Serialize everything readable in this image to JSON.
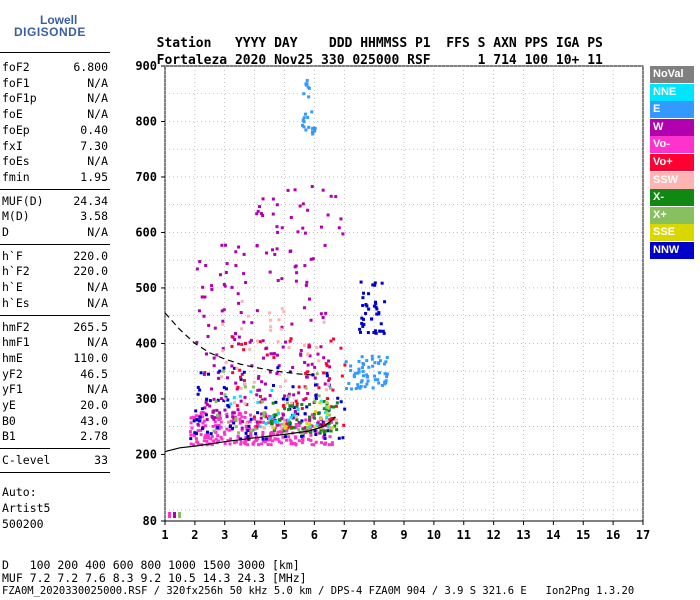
{
  "logo": {
    "top": "Lowell",
    "bottom": "DIGISONDE"
  },
  "header": {
    "labels": [
      "Station",
      "YYYY",
      "DAY",
      "DDD",
      "HHMMSS",
      "P1",
      "FFS",
      "S",
      "AXN",
      "PPS",
      "IGA",
      "PS"
    ],
    "values": [
      "Fortaleza",
      "2020",
      "Nov25",
      "330",
      "025000",
      "RSF",
      "",
      "1",
      "714",
      "100",
      "10+",
      "11"
    ]
  },
  "params_group1": [
    {
      "name": "foF2",
      "value": "6.800"
    },
    {
      "name": "foF1",
      "value": "N/A"
    },
    {
      "name": "foF1p",
      "value": "N/A"
    },
    {
      "name": "foE",
      "value": "N/A"
    },
    {
      "name": "foEp",
      "value": "0.40"
    },
    {
      "name": "fxI",
      "value": "7.30"
    },
    {
      "name": "foEs",
      "value": "N/A"
    },
    {
      "name": "fmin",
      "value": "1.95"
    }
  ],
  "params_group2": [
    {
      "name": "MUF(D)",
      "value": "24.34"
    },
    {
      "name": "M(D)",
      "value": "3.58"
    },
    {
      "name": "D",
      "value": "N/A"
    }
  ],
  "params_group3": [
    {
      "name": "h`F",
      "value": "220.0"
    },
    {
      "name": "h`F2",
      "value": "220.0"
    },
    {
      "name": "h`E",
      "value": "N/A"
    },
    {
      "name": "h`Es",
      "value": "N/A"
    }
  ],
  "params_group4": [
    {
      "name": "hmF2",
      "value": "265.5"
    },
    {
      "name": "hmF1",
      "value": "N/A"
    },
    {
      "name": "hmE",
      "value": "110.0"
    },
    {
      "name": "yF2",
      "value": "46.5"
    },
    {
      "name": "yF1",
      "value": "N/A"
    },
    {
      "name": "yE",
      "value": "20.0"
    },
    {
      "name": "B0",
      "value": "43.0"
    },
    {
      "name": "B1",
      "value": "2.78"
    }
  ],
  "params_group5": [
    {
      "name": "C-level",
      "value": "33"
    }
  ],
  "scaling_notes": [
    "Auto:",
    "Artist5",
    "500200"
  ],
  "legend": [
    {
      "label": "NoVal",
      "color": "#808080"
    },
    {
      "label": "NNE",
      "color": "#00e5ff"
    },
    {
      "label": "E",
      "color": "#3399ff"
    },
    {
      "label": "W",
      "color": "#b000b0"
    },
    {
      "label": "Vo-",
      "color": "#ff33cc"
    },
    {
      "label": "Vo+",
      "color": "#ff0033"
    },
    {
      "label": "SSW",
      "color": "#ffb3b3"
    },
    {
      "label": "X-",
      "color": "#118811"
    },
    {
      "label": "X+",
      "color": "#88c060"
    },
    {
      "label": "SSE",
      "color": "#d8d800"
    },
    {
      "label": "NNW",
      "color": "#0000cc"
    }
  ],
  "muf_table": {
    "d_label": "D",
    "d_values": [
      "100",
      "200",
      "400",
      "600",
      "800",
      "1000",
      "1500",
      "3000"
    ],
    "d_unit": "[km]",
    "muf_label": "MUF",
    "muf_values": [
      "7.2",
      "7.2",
      "7.6",
      "8.3",
      "9.2",
      "10.5",
      "14.3",
      "24.3"
    ],
    "muf_unit": "[MHz]"
  },
  "footer": "FZA0M_2020330025000.RSF / 320fx256h 50 kHz 5.0 km / DPS-4 FZA0M 904 / 3.9 S 321.6 E   Ion2Png 1.3.20",
  "chart_data": {
    "type": "scatter",
    "title": "",
    "xlabel": "",
    "ylabel": "",
    "xlim": [
      1,
      17
    ],
    "ylim": [
      80,
      900
    ],
    "x_ticks": [
      1,
      2,
      3,
      4,
      5,
      6,
      7,
      8,
      9,
      10,
      11,
      12,
      13,
      14,
      15,
      16,
      17
    ],
    "y_ticks": [
      80,
      200,
      300,
      400,
      500,
      600,
      700,
      800,
      900
    ],
    "grid": true,
    "legend_placement": "right",
    "curves": [
      {
        "style": "solid",
        "x": [
          1.0,
          1.5,
          2.0,
          3.0,
          4.0,
          5.0,
          5.8,
          6.3,
          6.6,
          6.7
        ],
        "y": [
          205,
          212,
          215,
          223,
          230,
          236,
          242,
          250,
          262,
          268
        ]
      },
      {
        "style": "dashed",
        "x": [
          1.0,
          1.5,
          2.0,
          2.5,
          3.0,
          3.5,
          4.0,
          4.5,
          5.0,
          5.5,
          6.0
        ],
        "y": [
          455,
          425,
          400,
          383,
          372,
          363,
          357,
          352,
          348,
          345,
          343
        ]
      }
    ],
    "clusters": [
      {
        "series": "Vo-",
        "x": [
          1.8,
          6.6
        ],
        "y": [
          220,
          280
        ],
        "n": 260
      },
      {
        "series": "W",
        "x": [
          2.0,
          6.5
        ],
        "y": [
          250,
          580
        ],
        "n": 200
      },
      {
        "series": "NNW",
        "x": [
          1.8,
          7.0
        ],
        "y": [
          230,
          360
        ],
        "n": 90
      },
      {
        "series": "NNW",
        "x": [
          7.4,
          8.3
        ],
        "y": [
          420,
          520
        ],
        "n": 40
      },
      {
        "series": "E",
        "x": [
          7.0,
          8.4
        ],
        "y": [
          320,
          380
        ],
        "n": 60
      },
      {
        "series": "Vo+",
        "x": [
          3.0,
          7.0
        ],
        "y": [
          250,
          420
        ],
        "n": 60
      },
      {
        "series": "X-",
        "x": [
          4.5,
          6.8
        ],
        "y": [
          240,
          300
        ],
        "n": 50
      },
      {
        "series": "SSW",
        "x": [
          2.5,
          6.8
        ],
        "y": [
          250,
          480
        ],
        "n": 50
      },
      {
        "series": "E",
        "x": [
          5.5,
          6.0
        ],
        "y": [
          780,
          880
        ],
        "n": 25
      },
      {
        "series": "X+",
        "x": [
          2.5,
          6.5
        ],
        "y": [
          240,
          360
        ],
        "n": 30
      },
      {
        "series": "NNE",
        "x": [
          3.0,
          6.5
        ],
        "y": [
          250,
          320
        ],
        "n": 25
      },
      {
        "series": "SSE",
        "x": [
          4.5,
          6.6
        ],
        "y": [
          250,
          300
        ],
        "n": 15
      },
      {
        "series": "W",
        "x": [
          4.0,
          7.0
        ],
        "y": [
          600,
          700
        ],
        "n": 30
      }
    ]
  }
}
